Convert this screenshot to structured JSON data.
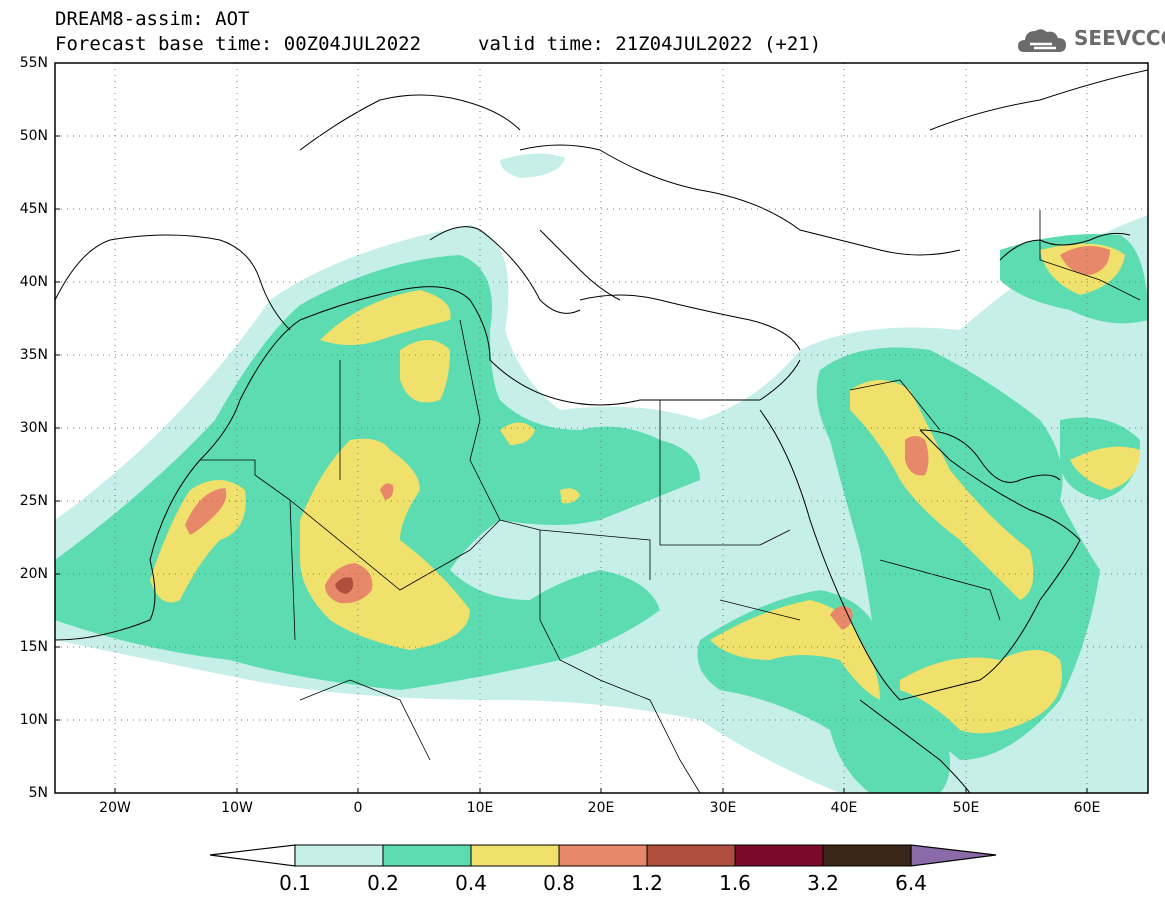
{
  "header": {
    "title": "DREAM8-assim: AOT",
    "base_time": "Forecast base time: 00Z04JUL2022",
    "valid_time": "valid time: 21Z04JUL2022 (+21)"
  },
  "logo": {
    "text": "SEEVCCC",
    "icon": "cloud-logo-icon",
    "color": "#6b6b6b"
  },
  "map": {
    "extent": {
      "lon": [
        -25,
        65
      ],
      "lat": [
        5,
        55
      ]
    },
    "y_axis_labels": [
      "55N",
      "50N",
      "45N",
      "40N",
      "35N",
      "30N",
      "25N",
      "20N",
      "15N",
      "10N",
      "5N"
    ],
    "x_axis_labels": [
      "20W",
      "10W",
      "0",
      "10E",
      "20E",
      "30E",
      "40E",
      "50E",
      "60E"
    ]
  },
  "colorbar": {
    "labels": [
      "0.1",
      "0.2",
      "0.4",
      "0.8",
      "1.2",
      "1.6",
      "3.2",
      "6.4"
    ],
    "colors": [
      "#c5efe8",
      "#5cdcb0",
      "#f0e06c",
      "#e8886a",
      "#b04e3e",
      "#7a0a2a",
      "#3a2616",
      "#8a6aa8"
    ]
  },
  "legend_colors": {
    "c01": "#c5efe8",
    "c02": "#5cdcb0",
    "c04": "#f0e06c",
    "c08": "#e8886a",
    "c12": "#b04e3e"
  }
}
